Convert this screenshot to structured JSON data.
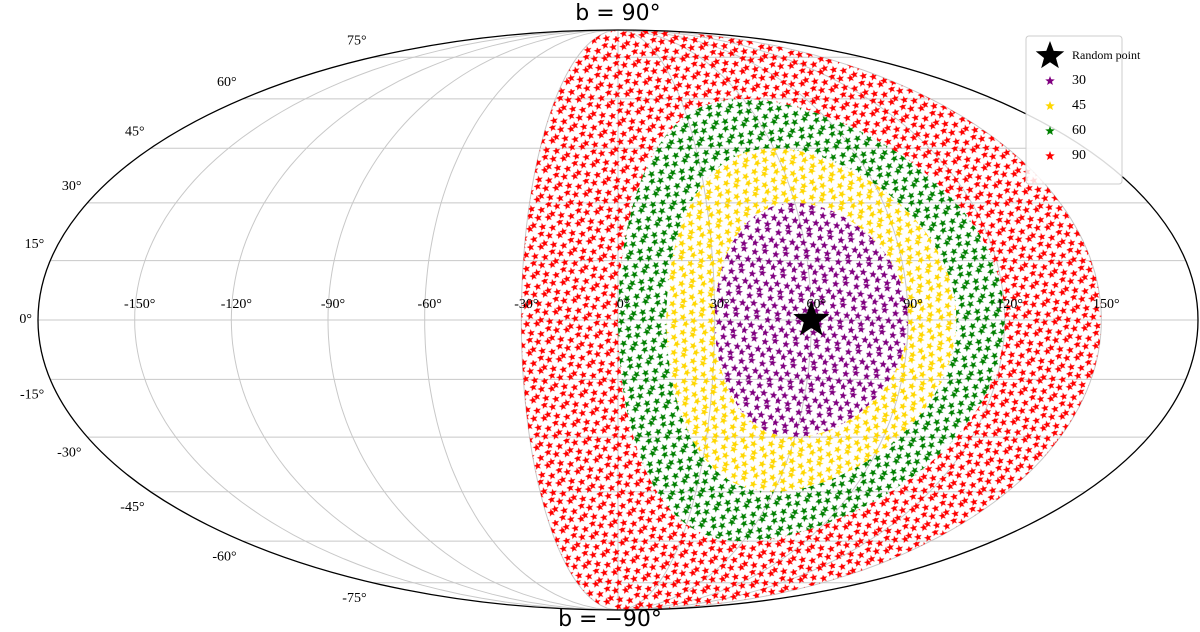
{
  "chart_data": {
    "type": "scatter",
    "projection": "mollweide",
    "annotations": [
      "b = 90°",
      "b = −90°"
    ],
    "random_point": {
      "name": "Random point",
      "l": 60,
      "b": 0,
      "color": "#000000"
    },
    "series": [
      {
        "name": "30",
        "radius": 30,
        "color": "#800080"
      },
      {
        "name": "45",
        "radius": 45,
        "color": "#ffd700"
      },
      {
        "name": "60",
        "radius": 60,
        "color": "#008000"
      },
      {
        "name": "90",
        "radius": 90,
        "color": "#ff0000"
      }
    ],
    "xlim": [
      -180,
      180
    ],
    "ylim": [
      -90,
      90
    ],
    "xticks": [
      {
        "value": -150,
        "label": "-150°"
      },
      {
        "value": -120,
        "label": "-120°"
      },
      {
        "value": -90,
        "label": "-90°"
      },
      {
        "value": -60,
        "label": "-60°"
      },
      {
        "value": -30,
        "label": "-30°"
      },
      {
        "value": 0,
        "label": "0°"
      },
      {
        "value": 30,
        "label": "30°"
      },
      {
        "value": 60,
        "label": "60°"
      },
      {
        "value": 90,
        "label": "90°"
      },
      {
        "value": 120,
        "label": "120°"
      },
      {
        "value": 150,
        "label": "150°"
      }
    ],
    "yticks": [
      {
        "value": -75,
        "label": "-75°"
      },
      {
        "value": -60,
        "label": "-60°"
      },
      {
        "value": -45,
        "label": "-45°"
      },
      {
        "value": -30,
        "label": "-30°"
      },
      {
        "value": -15,
        "label": "-15°"
      },
      {
        "value": 0,
        "label": "0°"
      },
      {
        "value": 15,
        "label": "15°"
      },
      {
        "value": 30,
        "label": "30°"
      },
      {
        "value": 45,
        "label": "45°"
      },
      {
        "value": 60,
        "label": "60°"
      },
      {
        "value": 75,
        "label": "75°"
      }
    ],
    "grid": true,
    "legend": "upper right"
  }
}
